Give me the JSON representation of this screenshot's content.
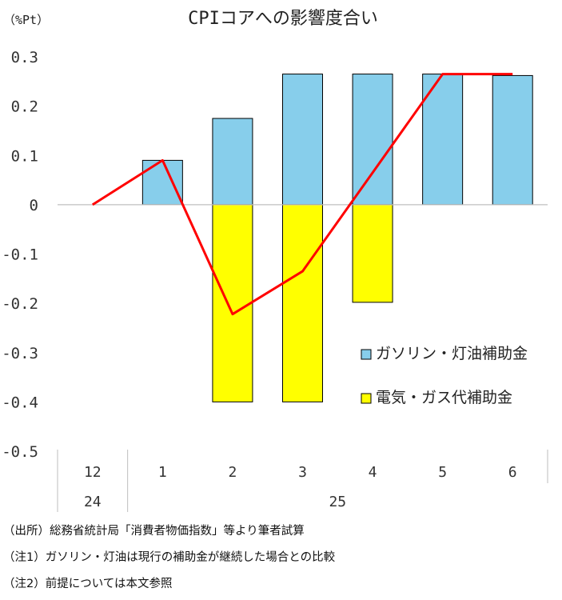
{
  "chart_data": {
    "type": "bar",
    "title": "CPIコアへの影響度合い",
    "ylabel": "（%Pt）",
    "ylim": [
      -0.5,
      0.3
    ],
    "yticks": [
      0.3,
      0.2,
      0.1,
      0,
      -0.1,
      -0.2,
      -0.3,
      -0.4,
      -0.5
    ],
    "ytick_labels": [
      "0.3",
      "0.2",
      "0.1",
      "0",
      "-0.1",
      "-0.2",
      "-0.3",
      "-0.4",
      "-0.5"
    ],
    "categories": [
      "12",
      "1",
      "2",
      "3",
      "4",
      "5",
      "6"
    ],
    "year_groups": [
      {
        "label": "24",
        "span": 1
      },
      {
        "label": "25",
        "span": 6
      }
    ],
    "series": [
      {
        "name": "ガソリン・灯油補助金",
        "kind": "bar",
        "color": "#87CEEB",
        "values": [
          0,
          0.09,
          0.175,
          0.265,
          0.265,
          0.265,
          0.262
        ]
      },
      {
        "name": "電気・ガス代補助金",
        "kind": "bar",
        "color": "#FFFF00",
        "values": [
          0,
          0,
          -0.4,
          -0.4,
          -0.198,
          0,
          0
        ]
      },
      {
        "name": "",
        "kind": "line",
        "color": "#FF0000",
        "values": [
          0,
          0.09,
          -0.222,
          -0.135,
          0.065,
          0.265,
          0.265
        ]
      }
    ],
    "legend_position": "right-middle",
    "grid": false
  },
  "notes": [
    "（出所）総務省統計局「消費者物価指数」等より筆者試算",
    "（注1）ガソリン・灯油は現行の補助金が継続した場合との比較",
    "（注2）前提については本文参照"
  ]
}
